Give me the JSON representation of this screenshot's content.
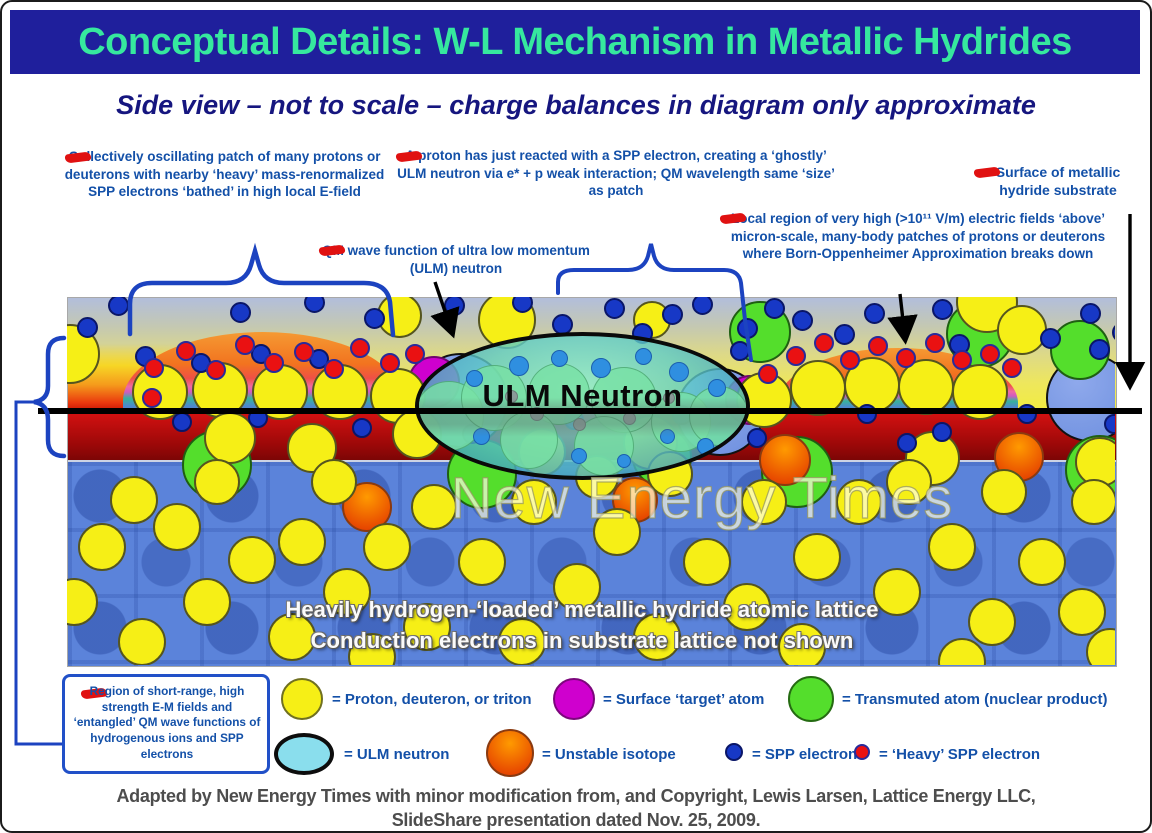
{
  "title": "Conceptual Details: W-L Mechanism in Metallic Hydrides",
  "subtitle": "Side view – not to scale – charge balances in diagram only approximate",
  "annotations": {
    "patch": "Collectively oscillating patch of many protons or deuterons with nearby ‘heavy’ mass-renormalized SPP electrons ‘bathed’ in high local E-field",
    "proton_reacted": "A proton has just reacted with a SPP electron, creating a ‘ghostly’ ULM neutron via e* + p weak interaction; QM wavelength same ‘size’ as patch",
    "surface": "Surface of metallic hydride substrate",
    "qm_wave": "QM wave function of ultra low momentum (ULM) neutron",
    "local_region": "Local region of very high (>10¹¹ V/m) electric fields ‘above’ micron-scale, many-body patches of protons or deuterons where Born-Oppenheimer Approximation breaks down",
    "region_box": "Region of short-range, high strength E-M fields and ‘entangled’ QM wave functions of hydrogenous ions and SPP electrons"
  },
  "diagram": {
    "ellipse_label": "ULM Neutron",
    "watermark": "New Energy Times",
    "lattice_caption_line1": "Heavily hydrogen-‘loaded’ metallic hydride atomic lattice",
    "lattice_caption_line2": "Conduction electrons in substrate lattice not shown"
  },
  "legend": {
    "items": [
      {
        "id": "proton",
        "label": "= Proton, deuteron, or triton",
        "color": "#f6ef16"
      },
      {
        "id": "target_atom",
        "label": "= Surface ‘target’ atom",
        "color": "#cf00ce"
      },
      {
        "id": "transmuted",
        "label": "= Transmuted atom (nuclear product)",
        "color": "#54de2c"
      },
      {
        "id": "ulm_neutron",
        "label": "= ULM neutron",
        "color": "#8adeed"
      },
      {
        "id": "unstable",
        "label": "= Unstable isotope",
        "color": "#f07010"
      },
      {
        "id": "spp_electron",
        "label": "= SPP electron",
        "color": "#1738c6"
      },
      {
        "id": "heavy_spp",
        "label": "= ‘Heavy’ SPP electron",
        "color": "#ea1112"
      }
    ]
  },
  "footer": {
    "line1": "Adapted by New Energy Times with minor modification from, and Copyright, Lewis Larsen, Lattice Energy LLC,",
    "line2": "SlideShare presentation dated Nov. 25, 2009."
  },
  "palette": {
    "title_bg": "#1f1f9c",
    "title_fg": "#36e89e",
    "annotation_blue": "#1350a8",
    "dash_red": "#e01111",
    "yellow": "#f6ef16",
    "green": "#54de2c",
    "magenta": "#cf00ce",
    "orange_hi": "#ff9a00",
    "orange_lo": "#e03000",
    "blue_small": "#1738c6",
    "red_small": "#ea1112",
    "big_blue": "#6c8ede",
    "ellipse_cyan": "#8adeed",
    "lattice_blue": "#5b83da",
    "band_red": "#9a0808"
  }
}
